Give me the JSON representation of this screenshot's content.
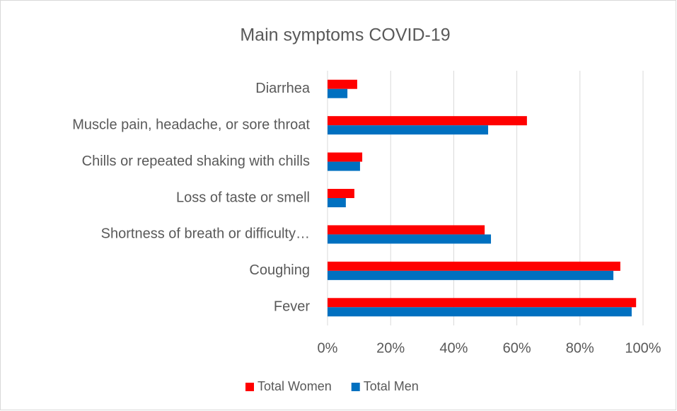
{
  "chart_data": {
    "type": "bar",
    "orientation": "horizontal",
    "title": "Main symptoms COVID-19",
    "categories": [
      "Diarrhea",
      "Muscle pain, headache, or sore throat",
      "Chills or repeated shaking with chills",
      "Loss of taste or smell",
      "Shortness of breath or difficulty…",
      "Coughing",
      "Fever"
    ],
    "series": [
      {
        "name": "Total Women",
        "color": "#ff0000",
        "values": [
          9.4,
          63.2,
          11,
          8.5,
          49.8,
          92.8,
          97.8
        ]
      },
      {
        "name": "Total Men",
        "color": "#0070c0",
        "values": [
          6.3,
          50.9,
          10.3,
          5.8,
          51.8,
          90.6,
          96.4
        ]
      }
    ],
    "xlim": [
      0,
      100
    ],
    "xticks": [
      {
        "value": 0,
        "label": "0%"
      },
      {
        "value": 20,
        "label": "20%"
      },
      {
        "value": 40,
        "label": "40%"
      },
      {
        "value": 60,
        "label": "60%"
      },
      {
        "value": 80,
        "label": "80%"
      },
      {
        "value": 100,
        "label": "100%"
      }
    ],
    "grid": true,
    "legend": "bottom"
  }
}
